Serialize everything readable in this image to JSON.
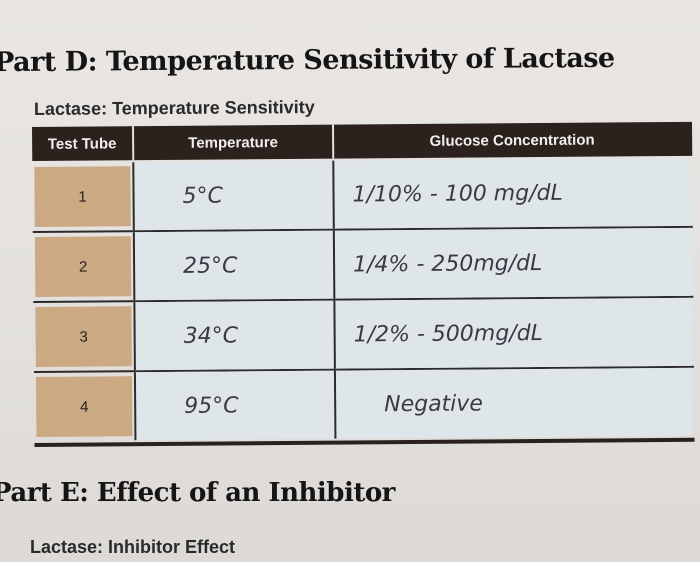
{
  "part_d": {
    "title": "Part D: Temperature Sensitivity of Lactase",
    "table_title": "Lactase: Temperature Sensitivity",
    "headers": [
      "Test Tube",
      "Temperature",
      "Glucose Concentration"
    ],
    "rows": [
      {
        "tube": "1",
        "temperature": "5°C",
        "glucose": "1/10% - 100 mg/dL"
      },
      {
        "tube": "2",
        "temperature": "25°C",
        "glucose": "1/4% - 250mg/dL"
      },
      {
        "tube": "3",
        "temperature": "34°C",
        "glucose": "1/2% - 500mg/dL"
      },
      {
        "tube": "4",
        "temperature": "95°C",
        "glucose": "Negative"
      }
    ]
  },
  "part_e": {
    "title": "Part E: Effect of an Inhibitor",
    "table_title": "Lactase: Inhibitor Effect"
  }
}
